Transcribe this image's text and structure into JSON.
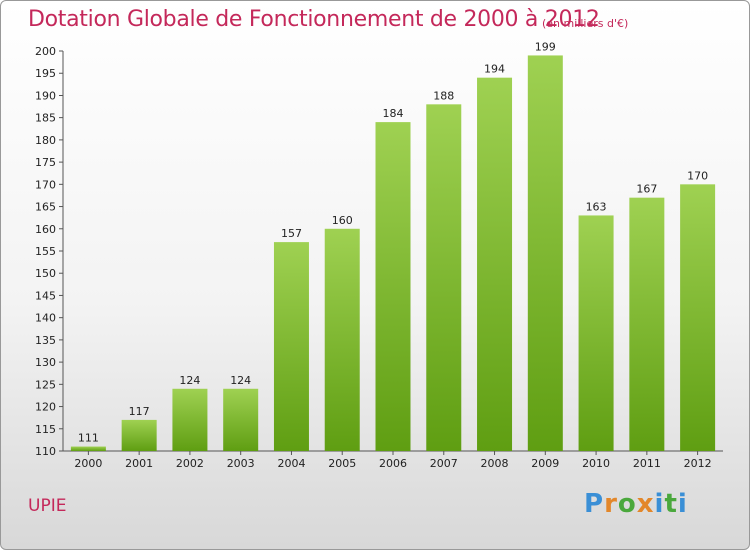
{
  "title": "Dotation Globale de Fonctionnement de 2000 à 2012",
  "subtitle": "(en milliers d'€)",
  "commune": "UPIE",
  "logo": {
    "letters": [
      "P",
      "r",
      "o",
      "x",
      "i",
      "t",
      "i"
    ],
    "colors": [
      "#3a8fd6",
      "#e3872a",
      "#4aa83c",
      "#e3872a",
      "#3a8fd6",
      "#4aa83c",
      "#3a8fd6"
    ]
  },
  "colors": {
    "title": "#c4285a",
    "bar_light": "#9fd152",
    "bar_dark": "#5f9e12"
  },
  "chart_data": {
    "type": "bar",
    "categories": [
      "2000",
      "2001",
      "2002",
      "2003",
      "2004",
      "2005",
      "2006",
      "2007",
      "2008",
      "2009",
      "2010",
      "2011",
      "2012"
    ],
    "values": [
      111,
      117,
      124,
      124,
      157,
      160,
      184,
      188,
      194,
      199,
      163,
      167,
      170
    ],
    "ylim": [
      110,
      200
    ],
    "yticks": [
      110,
      115,
      120,
      125,
      130,
      135,
      140,
      145,
      150,
      155,
      160,
      165,
      170,
      175,
      180,
      185,
      190,
      195,
      200
    ],
    "grid": false,
    "legend": "none"
  }
}
